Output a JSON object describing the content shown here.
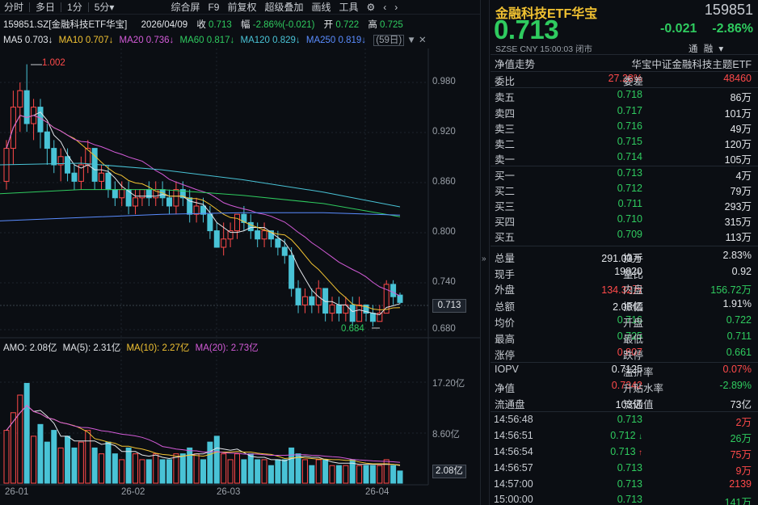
{
  "toolbar": {
    "items": [
      "分时",
      "多日",
      "1分",
      "5分",
      "综合屏",
      "F9",
      "前复权",
      "超级叠加",
      "画线",
      "工具"
    ],
    "five_min_arrow": "▾"
  },
  "info": {
    "symbol": "159851.SZ[金融科技ETF华宝]",
    "date": "2026/04/09",
    "close_label": "收",
    "close": "0.713",
    "range_label": "幅",
    "range": "-2.86%(-0.021)",
    "open_label": "开",
    "open": "0.722",
    "high_label": "高",
    "high": "0.725"
  },
  "ma": {
    "ma5": "MA5 0.703↓",
    "ma10": "MA10 0.707↓",
    "ma20": "MA20 0.736↓",
    "ma60": "MA60 0.817↓",
    "ma120": "MA120 0.829↓",
    "ma250": "MA250 0.819↓",
    "days": "(59日)"
  },
  "price_axis": [
    "0.980",
    "0.920",
    "0.860",
    "0.800",
    "0.740",
    "0.680"
  ],
  "annotations": {
    "high": "1.002",
    "low": "0.684",
    "current": "0.713"
  },
  "amo": {
    "amo": "AMO: 2.08亿",
    "ma5": "MA(5): 2.31亿",
    "ma10": "MA(10): 2.27亿",
    "ma20": "MA(20): 2.73亿"
  },
  "vol_axis": [
    "17.20亿",
    "8.60亿"
  ],
  "vol_current": "2.08亿",
  "x_axis": [
    "26-01",
    "26-02",
    "26-03",
    "26-04"
  ],
  "colors": {
    "up": "#ff4a4a",
    "down": "#2fcb5f",
    "candle_down": "#49c3d6",
    "ma5": "#e3e6ea",
    "ma10": "#f1c232",
    "ma20": "#d35bd8",
    "ma60": "#2fcb5f",
    "ma120": "#49c3d6",
    "ma250": "#5a8cff"
  },
  "quote": {
    "name": "金融科技ETF华宝",
    "code": "159851",
    "price": "0.713",
    "change": "-0.021",
    "pct": "-2.86%",
    "meta": "SZSE  CNY  15:00:03  闭市",
    "tag1": "通",
    "tag2": "融",
    "tag_arrow": "▾",
    "trend_label": "净值走势",
    "index_name": "华宝中证金融科技主题ETF",
    "webi_label": "委比",
    "webi": "27.28%",
    "wecha_label": "委差",
    "wecha": "48460"
  },
  "sells": [
    {
      "label": "卖五",
      "price": "0.718",
      "vol": "86万"
    },
    {
      "label": "卖四",
      "price": "0.717",
      "vol": "101万"
    },
    {
      "label": "卖三",
      "price": "0.716",
      "vol": "49万"
    },
    {
      "label": "卖二",
      "price": "0.715",
      "vol": "120万"
    },
    {
      "label": "卖一",
      "price": "0.714",
      "vol": "105万"
    }
  ],
  "buys": [
    {
      "label": "买一",
      "price": "0.713",
      "vol": "4万"
    },
    {
      "label": "买二",
      "price": "0.712",
      "vol": "79万"
    },
    {
      "label": "买三",
      "price": "0.711",
      "vol": "293万"
    },
    {
      "label": "买四",
      "price": "0.710",
      "vol": "315万"
    },
    {
      "label": "买五",
      "price": "0.709",
      "vol": "113万"
    }
  ],
  "stats": [
    {
      "l1": "总量",
      "v1": "291.03万",
      "l2": "换手",
      "v2": "2.83%"
    },
    {
      "l1": "现手",
      "v1": "19820",
      "l2": "量比",
      "v2": "0.92"
    },
    {
      "l1": "外盘",
      "v1": "134.32万",
      "l2": "内盘",
      "v2": "156.72万"
    },
    {
      "l1": "总额",
      "v1": "2.08亿",
      "l2": "振幅",
      "v2": "1.91%"
    },
    {
      "l1": "均价",
      "v1": "0.716",
      "l2": "开盘",
      "v2": "0.722"
    },
    {
      "l1": "最高",
      "v1": "0.725",
      "l2": "最低",
      "v2": "0.711"
    },
    {
      "l1": "涨停",
      "v1": "0.807",
      "l2": "跌停",
      "v2": "0.661"
    }
  ],
  "iopv": [
    {
      "l1": "IOPV",
      "v1": "0.7125",
      "l2": "溢折率",
      "v2": "0.07%"
    },
    {
      "l1": "净值",
      "v1": "0.7342",
      "l2": "升贴水率",
      "v2": "-2.89%"
    },
    {
      "l1": "流通盘",
      "v1": "103亿",
      "l2": "流通值",
      "v2": "73亿"
    }
  ],
  "ticks": [
    {
      "time": "14:56:48",
      "price": "0.713",
      "arrow": "",
      "vol": "2万"
    },
    {
      "time": "14:56:51",
      "price": "0.712",
      "arrow": "↓",
      "vol": "26万"
    },
    {
      "time": "14:56:54",
      "price": "0.713",
      "arrow": "↑",
      "vol": "75万"
    },
    {
      "time": "14:56:57",
      "price": "0.713",
      "arrow": "",
      "vol": "9万"
    },
    {
      "time": "14:57:00",
      "price": "0.713",
      "arrow": "",
      "vol": "2139"
    },
    {
      "time": "15:00:00",
      "price": "0.713",
      "arrow": "",
      "vol": "141万"
    }
  ]
}
